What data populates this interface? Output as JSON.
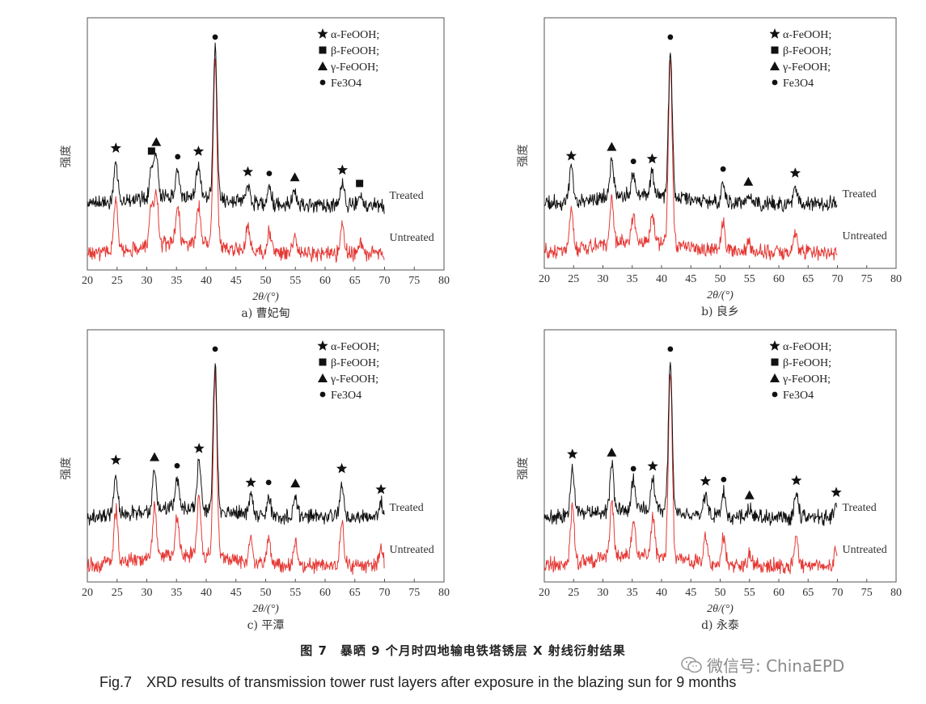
{
  "chart_data": [
    {
      "type": "line",
      "title": "a) 曹妃甸",
      "xlabel": "2θ/(°)",
      "ylabel": "强度",
      "xlim": [
        20,
        80
      ],
      "xticks": [
        20,
        25,
        30,
        35,
        40,
        45,
        50,
        55,
        60,
        65,
        70,
        75,
        80
      ],
      "series": [
        {
          "name": "Treated",
          "color": "#111111"
        },
        {
          "name": "Untreated",
          "color": "#e53935"
        }
      ],
      "legend": [
        {
          "marker": "★",
          "label": "α-FeOOH;"
        },
        {
          "marker": "■",
          "label": "β-FeOOH;"
        },
        {
          "marker": "▲",
          "label": "γ-FeOOH;"
        },
        {
          "marker": "●",
          "label": "Fe3O4"
        }
      ],
      "peaks": [
        {
          "x": 24.8,
          "h": 0.28,
          "marker": "★"
        },
        {
          "x": 30.8,
          "h": 0.22,
          "marker": "■"
        },
        {
          "x": 31.6,
          "h": 0.28,
          "marker": "▲"
        },
        {
          "x": 35.2,
          "h": 0.18,
          "marker": "●"
        },
        {
          "x": 38.7,
          "h": 0.22,
          "marker": "★"
        },
        {
          "x": 41.5,
          "h": 1.0,
          "marker": "●"
        },
        {
          "x": 47.0,
          "h": 0.12,
          "marker": "★"
        },
        {
          "x": 50.6,
          "h": 0.12,
          "marker": "●"
        },
        {
          "x": 54.9,
          "h": 0.1,
          "marker": "▲"
        },
        {
          "x": 62.9,
          "h": 0.15,
          "marker": "★"
        },
        {
          "x": 65.8,
          "h": 0.06,
          "marker": "■"
        }
      ]
    },
    {
      "type": "line",
      "title": "b) 良乡",
      "xlabel": "2θ/(°)",
      "ylabel": "强度",
      "xlim": [
        20,
        80
      ],
      "xticks": [
        20,
        25,
        30,
        35,
        40,
        45,
        50,
        55,
        60,
        65,
        70,
        75,
        80
      ],
      "series": [
        {
          "name": "Treated",
          "color": "#111111"
        },
        {
          "name": "Untreated",
          "color": "#e53935"
        }
      ],
      "legend": [
        {
          "marker": "★",
          "label": "α-FeOOH;"
        },
        {
          "marker": "■",
          "label": "β-FeOOH;"
        },
        {
          "marker": "▲",
          "label": "γ-FeOOH;"
        },
        {
          "marker": "●",
          "label": "Fe3O4"
        }
      ],
      "peaks": [
        {
          "x": 24.6,
          "h": 0.22,
          "marker": "★"
        },
        {
          "x": 31.5,
          "h": 0.25,
          "marker": "▲"
        },
        {
          "x": 35.2,
          "h": 0.14,
          "marker": "●"
        },
        {
          "x": 38.4,
          "h": 0.16,
          "marker": "★"
        },
        {
          "x": 41.5,
          "h": 1.0,
          "marker": "●"
        },
        {
          "x": 50.5,
          "h": 0.14,
          "marker": "●"
        },
        {
          "x": 54.8,
          "h": 0.06,
          "marker": "▲"
        },
        {
          "x": 62.8,
          "h": 0.12,
          "marker": "★"
        }
      ]
    },
    {
      "type": "line",
      "title": "c) 平潭",
      "xlabel": "2θ/(°)",
      "ylabel": "强度",
      "xlim": [
        20,
        80
      ],
      "xticks": [
        20,
        25,
        30,
        35,
        40,
        45,
        50,
        55,
        60,
        65,
        70,
        75,
        80
      ],
      "series": [
        {
          "name": "Treated",
          "color": "#111111"
        },
        {
          "name": "Untreated",
          "color": "#e53935"
        }
      ],
      "legend": [
        {
          "marker": "★",
          "label": "α-FeOOH;"
        },
        {
          "marker": "■",
          "label": "β-FeOOH;"
        },
        {
          "marker": "▲",
          "label": "γ-FeOOH;"
        },
        {
          "marker": "●",
          "label": "Fe3O4"
        }
      ],
      "peaks": [
        {
          "x": 24.8,
          "h": 0.28,
          "marker": "★"
        },
        {
          "x": 31.3,
          "h": 0.27,
          "marker": "▲"
        },
        {
          "x": 35.1,
          "h": 0.2,
          "marker": "●"
        },
        {
          "x": 38.8,
          "h": 0.32,
          "marker": "★"
        },
        {
          "x": 41.5,
          "h": 1.0,
          "marker": "●"
        },
        {
          "x": 47.5,
          "h": 0.13,
          "marker": "★"
        },
        {
          "x": 50.5,
          "h": 0.14,
          "marker": "●"
        },
        {
          "x": 55.0,
          "h": 0.14,
          "marker": "▲"
        },
        {
          "x": 62.8,
          "h": 0.24,
          "marker": "★"
        },
        {
          "x": 69.4,
          "h": 0.1,
          "marker": "★"
        }
      ]
    },
    {
      "type": "line",
      "title": "d) 永泰",
      "xlabel": "2θ/(°)",
      "ylabel": "强度",
      "xlim": [
        20,
        80
      ],
      "xticks": [
        20,
        25,
        30,
        35,
        40,
        45,
        50,
        55,
        60,
        65,
        70,
        75,
        80
      ],
      "series": [
        {
          "name": "Treated",
          "color": "#111111"
        },
        {
          "name": "Untreated",
          "color": "#e53935"
        }
      ],
      "legend": [
        {
          "marker": "★",
          "label": "α-FeOOH;"
        },
        {
          "marker": "■",
          "label": "β-FeOOH;"
        },
        {
          "marker": "▲",
          "label": "γ-FeOOH;"
        },
        {
          "marker": "●",
          "label": "Fe3O4"
        }
      ],
      "peaks": [
        {
          "x": 24.8,
          "h": 0.32,
          "marker": "★"
        },
        {
          "x": 31.5,
          "h": 0.3,
          "marker": "▲"
        },
        {
          "x": 35.2,
          "h": 0.18,
          "marker": "●"
        },
        {
          "x": 38.5,
          "h": 0.2,
          "marker": "★"
        },
        {
          "x": 41.5,
          "h": 1.0,
          "marker": "●"
        },
        {
          "x": 47.5,
          "h": 0.14,
          "marker": "★"
        },
        {
          "x": 50.6,
          "h": 0.16,
          "marker": "●"
        },
        {
          "x": 55.0,
          "h": 0.06,
          "marker": "▲"
        },
        {
          "x": 63.0,
          "h": 0.16,
          "marker": "★"
        },
        {
          "x": 69.8,
          "h": 0.08,
          "marker": "★"
        }
      ]
    }
  ],
  "caption": {
    "cn": "图 7　暴晒 9 个月时四地输电铁塔锈层 X 射线衍射结果",
    "en": "Fig.7　XRD results of transmission tower rust layers after exposure in the blazing sun for 9 months"
  },
  "watermark": {
    "text": "微信号: ChinaEPD",
    "icon": "wechat-icon"
  }
}
